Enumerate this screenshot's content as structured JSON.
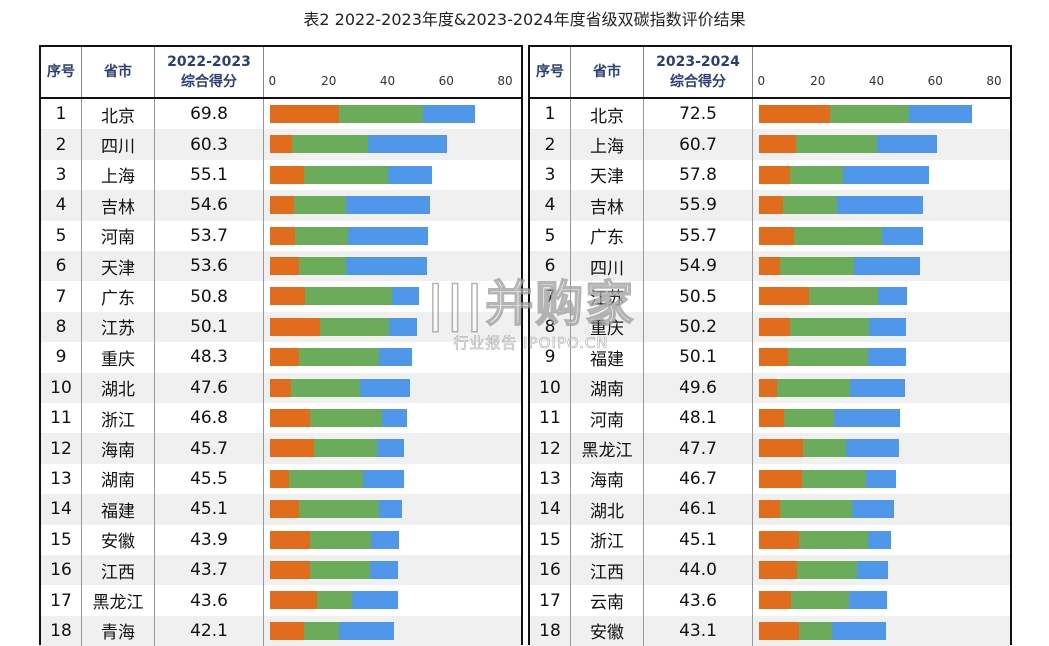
{
  "title": "表2 2022-2023年度&2023-2024年度省级双碳指数评价结果",
  "watermark": {
    "main": "|||并购家",
    "sub": "行业报告 IPOIPO.CN"
  },
  "colors": {
    "segment_a": "#e06c1c",
    "segment_b": "#6aac5a",
    "segment_c": "#4f97ea"
  },
  "chart_data": [
    {
      "type": "bar",
      "orientation": "horizontal",
      "stacked": true,
      "headers": {
        "rank": "序号",
        "province": "省市",
        "score_line1": "2022-2023",
        "score_line2": "综合得分"
      },
      "xlim": [
        0,
        80
      ],
      "ticks": [
        "0",
        "20",
        "40",
        "60",
        "80"
      ],
      "rows": [
        {
          "rank": "1",
          "province": "北京",
          "score": "69.8",
          "segments": [
            23.5,
            28.5,
            17.8
          ]
        },
        {
          "rank": "2",
          "province": "四川",
          "score": "60.3",
          "segments": [
            7.5,
            26.0,
            26.8
          ]
        },
        {
          "rank": "3",
          "province": "上海",
          "score": "55.1",
          "segments": [
            11.5,
            28.5,
            15.1
          ]
        },
        {
          "rank": "4",
          "province": "吉林",
          "score": "54.6",
          "segments": [
            8.0,
            18.0,
            28.6
          ]
        },
        {
          "rank": "5",
          "province": "河南",
          "score": "53.7",
          "segments": [
            8.5,
            18.0,
            27.2
          ]
        },
        {
          "rank": "6",
          "province": "天津",
          "score": "53.6",
          "segments": [
            10.0,
            16.0,
            27.6
          ]
        },
        {
          "rank": "7",
          "province": "广东",
          "score": "50.8",
          "segments": [
            12.0,
            29.5,
            9.3
          ]
        },
        {
          "rank": "8",
          "province": "江苏",
          "score": "50.1",
          "segments": [
            17.0,
            23.5,
            9.6
          ]
        },
        {
          "rank": "9",
          "province": "重庆",
          "score": "48.3",
          "segments": [
            10.0,
            27.0,
            11.3
          ]
        },
        {
          "rank": "10",
          "province": "湖北",
          "score": "47.6",
          "segments": [
            7.0,
            23.5,
            17.1
          ]
        },
        {
          "rank": "11",
          "province": "浙江",
          "score": "46.8",
          "segments": [
            13.5,
            24.5,
            8.8
          ]
        },
        {
          "rank": "12",
          "province": "海南",
          "score": "45.7",
          "segments": [
            15.0,
            21.5,
            9.2
          ]
        },
        {
          "rank": "13",
          "province": "湖南",
          "score": "45.5",
          "segments": [
            6.5,
            25.0,
            14.0
          ]
        },
        {
          "rank": "14",
          "province": "福建",
          "score": "45.1",
          "segments": [
            10.0,
            27.0,
            8.1
          ]
        },
        {
          "rank": "15",
          "province": "安徽",
          "score": "43.9",
          "segments": [
            13.5,
            21.0,
            9.4
          ]
        },
        {
          "rank": "16",
          "province": "江西",
          "score": "43.7",
          "segments": [
            13.5,
            20.5,
            9.7
          ]
        },
        {
          "rank": "17",
          "province": "黑龙江",
          "score": "43.6",
          "segments": [
            16.0,
            12.0,
            15.6
          ]
        },
        {
          "rank": "18",
          "province": "青海",
          "score": "42.1",
          "segments": [
            11.5,
            12.0,
            18.6
          ]
        }
      ]
    },
    {
      "type": "bar",
      "orientation": "horizontal",
      "stacked": true,
      "headers": {
        "rank": "序号",
        "province": "省市",
        "score_line1": "2023-2024",
        "score_line2": "综合得分"
      },
      "xlim": [
        0,
        80
      ],
      "ticks": [
        "0",
        "20",
        "40",
        "60",
        "80"
      ],
      "rows": [
        {
          "rank": "1",
          "province": "北京",
          "score": "72.5",
          "segments": [
            24.0,
            27.0,
            21.5
          ]
        },
        {
          "rank": "2",
          "province": "上海",
          "score": "60.7",
          "segments": [
            12.5,
            27.5,
            20.7
          ]
        },
        {
          "rank": "3",
          "province": "天津",
          "score": "57.8",
          "segments": [
            10.5,
            18.0,
            29.3
          ]
        },
        {
          "rank": "4",
          "province": "吉林",
          "score": "55.9",
          "segments": [
            8.0,
            18.5,
            29.4
          ]
        },
        {
          "rank": "5",
          "province": "广东",
          "score": "55.7",
          "segments": [
            12.0,
            30.0,
            13.7
          ]
        },
        {
          "rank": "6",
          "province": "四川",
          "score": "54.9",
          "segments": [
            7.0,
            25.5,
            22.4
          ]
        },
        {
          "rank": "7",
          "province": "江苏",
          "score": "50.5",
          "segments": [
            17.0,
            23.5,
            10.0
          ]
        },
        {
          "rank": "8",
          "province": "重庆",
          "score": "50.2",
          "segments": [
            10.5,
            27.0,
            12.7
          ]
        },
        {
          "rank": "9",
          "province": "福建",
          "score": "50.1",
          "segments": [
            10.0,
            27.0,
            13.1
          ]
        },
        {
          "rank": "10",
          "province": "湖南",
          "score": "49.6",
          "segments": [
            6.0,
            25.0,
            18.6
          ]
        },
        {
          "rank": "11",
          "province": "河南",
          "score": "48.1",
          "segments": [
            8.5,
            17.0,
            22.6
          ]
        },
        {
          "rank": "12",
          "province": "黑龙江",
          "score": "47.7",
          "segments": [
            15.0,
            14.5,
            18.2
          ]
        },
        {
          "rank": "13",
          "province": "海南",
          "score": "46.7",
          "segments": [
            14.5,
            22.0,
            10.2
          ]
        },
        {
          "rank": "14",
          "province": "湖北",
          "score": "46.1",
          "segments": [
            7.0,
            24.5,
            14.6
          ]
        },
        {
          "rank": "15",
          "province": "浙江",
          "score": "45.1",
          "segments": [
            13.5,
            23.5,
            8.1
          ]
        },
        {
          "rank": "16",
          "province": "江西",
          "score": "44.0",
          "segments": [
            13.0,
            20.5,
            10.5
          ]
        },
        {
          "rank": "17",
          "province": "云南",
          "score": "43.6",
          "segments": [
            11.0,
            19.5,
            13.1
          ]
        },
        {
          "rank": "18",
          "province": "安徽",
          "score": "43.1",
          "segments": [
            13.5,
            11.5,
            18.1
          ]
        }
      ]
    }
  ]
}
